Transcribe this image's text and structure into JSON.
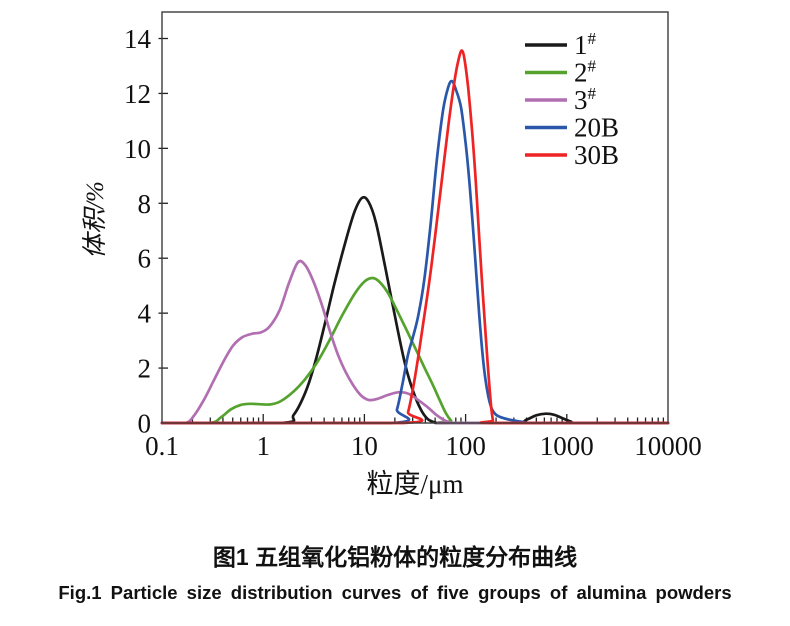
{
  "figure": {
    "captions": {
      "chinese": "图1 五组氧化铝粉体的粒度分布曲线",
      "english": "Fig.1 Particle size distribution curves of five groups of alumina powders"
    }
  },
  "chart_data": {
    "type": "line",
    "title": "",
    "xlabel": "粒度/μm",
    "ylabel": "体积/%",
    "x_scale": "log",
    "xlim": [
      0.1,
      10000
    ],
    "ylim": [
      0,
      14
    ],
    "x_ticks": [
      0.1,
      1,
      10,
      100,
      1000,
      10000
    ],
    "x_tick_labels": [
      "0.1",
      "1",
      "10",
      "100",
      "1000",
      "10000"
    ],
    "y_ticks": [
      0,
      2,
      4,
      6,
      8,
      10,
      12,
      14
    ],
    "grid": false,
    "legend_position": "top-right-inside",
    "frame_color": "#3c3c3c",
    "series": [
      {
        "name": "1",
        "sup": "#",
        "color": "#1a1a1a",
        "points": [
          [
            0.1,
            0
          ],
          [
            1.5,
            0
          ],
          [
            2,
            0.3
          ],
          [
            2.6,
            1.1
          ],
          [
            3.2,
            2.1
          ],
          [
            4,
            3.5
          ],
          [
            5,
            5.0
          ],
          [
            6.5,
            6.6
          ],
          [
            8,
            7.7
          ],
          [
            9.5,
            8.2
          ],
          [
            11,
            8.05
          ],
          [
            13,
            7.3
          ],
          [
            16,
            5.7
          ],
          [
            20,
            3.9
          ],
          [
            25,
            2.2
          ],
          [
            30,
            1.2
          ],
          [
            36,
            0.5
          ],
          [
            42,
            0.15
          ],
          [
            50,
            0.02
          ],
          [
            60,
            0
          ],
          [
            300,
            0
          ],
          [
            400,
            0.12
          ],
          [
            500,
            0.28
          ],
          [
            620,
            0.34
          ],
          [
            750,
            0.3
          ],
          [
            900,
            0.18
          ],
          [
            1100,
            0.05
          ],
          [
            1300,
            0
          ],
          [
            10000,
            0
          ]
        ]
      },
      {
        "name": "2",
        "sup": "#",
        "color": "#55a32e",
        "points": [
          [
            0.1,
            0
          ],
          [
            0.29,
            0
          ],
          [
            0.38,
            0.2
          ],
          [
            0.48,
            0.5
          ],
          [
            0.6,
            0.66
          ],
          [
            0.75,
            0.7
          ],
          [
            0.95,
            0.68
          ],
          [
            1.2,
            0.68
          ],
          [
            1.5,
            0.8
          ],
          [
            2,
            1.15
          ],
          [
            2.6,
            1.6
          ],
          [
            3.4,
            2.2
          ],
          [
            4.5,
            3.0
          ],
          [
            6,
            3.9
          ],
          [
            8,
            4.7
          ],
          [
            10,
            5.15
          ],
          [
            12,
            5.28
          ],
          [
            14,
            5.15
          ],
          [
            17,
            4.75
          ],
          [
            21,
            4.1
          ],
          [
            26,
            3.4
          ],
          [
            33,
            2.6
          ],
          [
            40,
            1.95
          ],
          [
            48,
            1.35
          ],
          [
            56,
            0.8
          ],
          [
            64,
            0.35
          ],
          [
            72,
            0.08
          ],
          [
            78,
            0
          ],
          [
            10000,
            0
          ]
        ]
      },
      {
        "name": "3",
        "sup": "#",
        "color": "#b16fb1",
        "points": [
          [
            0.1,
            0
          ],
          [
            0.17,
            0
          ],
          [
            0.21,
            0.3
          ],
          [
            0.26,
            0.85
          ],
          [
            0.32,
            1.5
          ],
          [
            0.4,
            2.2
          ],
          [
            0.5,
            2.8
          ],
          [
            0.62,
            3.12
          ],
          [
            0.78,
            3.25
          ],
          [
            0.95,
            3.3
          ],
          [
            1.15,
            3.5
          ],
          [
            1.45,
            4.1
          ],
          [
            1.8,
            5.1
          ],
          [
            2.2,
            5.85
          ],
          [
            2.6,
            5.75
          ],
          [
            3.1,
            5.2
          ],
          [
            3.8,
            4.3
          ],
          [
            4.6,
            3.3
          ],
          [
            5.6,
            2.4
          ],
          [
            7,
            1.65
          ],
          [
            9,
            1.05
          ],
          [
            11,
            0.84
          ],
          [
            13.5,
            0.88
          ],
          [
            17,
            1.02
          ],
          [
            22,
            1.12
          ],
          [
            28,
            1.05
          ],
          [
            35,
            0.8
          ],
          [
            43,
            0.55
          ],
          [
            52,
            0.28
          ],
          [
            62,
            0.1
          ],
          [
            70,
            0.02
          ],
          [
            78,
            0
          ],
          [
            10000,
            0
          ]
        ]
      },
      {
        "name": "20B",
        "sup": "",
        "color": "#2b57aa",
        "points": [
          [
            0.1,
            0
          ],
          [
            18,
            0
          ],
          [
            21,
            0.5
          ],
          [
            24,
            1.5
          ],
          [
            27,
            2.5
          ],
          [
            30,
            3.1
          ],
          [
            34,
            3.9
          ],
          [
            39,
            5.2
          ],
          [
            45,
            7.2
          ],
          [
            52,
            9.6
          ],
          [
            60,
            11.4
          ],
          [
            67,
            12.2
          ],
          [
            73,
            12.45
          ],
          [
            80,
            12.15
          ],
          [
            90,
            11.5
          ],
          [
            100,
            10.2
          ],
          [
            110,
            8.6
          ],
          [
            120,
            6.8
          ],
          [
            130,
            5.0
          ],
          [
            140,
            3.4
          ],
          [
            152,
            2.0
          ],
          [
            165,
            1.1
          ],
          [
            180,
            0.55
          ],
          [
            200,
            0.3
          ],
          [
            240,
            0.17
          ],
          [
            300,
            0.09
          ],
          [
            380,
            0.03
          ],
          [
            450,
            0
          ],
          [
            10000,
            0
          ]
        ]
      },
      {
        "name": "30B",
        "sup": "",
        "color": "#ee2424",
        "points": [
          [
            0.1,
            0
          ],
          [
            24,
            0
          ],
          [
            27,
            0.4
          ],
          [
            30,
            1.2
          ],
          [
            34,
            2.4
          ],
          [
            38,
            3.6
          ],
          [
            44,
            5.2
          ],
          [
            50,
            6.8
          ],
          [
            58,
            8.8
          ],
          [
            68,
            10.9
          ],
          [
            78,
            12.5
          ],
          [
            86,
            13.3
          ],
          [
            92,
            13.56
          ],
          [
            98,
            13.2
          ],
          [
            106,
            12.2
          ],
          [
            115,
            10.8
          ],
          [
            125,
            9.0
          ],
          [
            135,
            7.0
          ],
          [
            145,
            5.2
          ],
          [
            155,
            3.6
          ],
          [
            165,
            2.2
          ],
          [
            173,
            1.2
          ],
          [
            180,
            0.5
          ],
          [
            186,
            0.1
          ],
          [
            190,
            0
          ],
          [
            10000,
            0
          ]
        ]
      }
    ]
  }
}
